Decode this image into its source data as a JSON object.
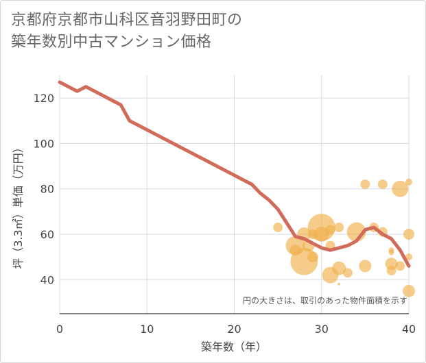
{
  "title_line1": "京都府京都市山科区音羽野田町の",
  "title_line2": "築年数別中古マンション価格",
  "colors": {
    "line": "#d16b5a",
    "bubble": "#f0b04b",
    "grid": "#d3dbe3",
    "background": "#ffffff"
  },
  "chart_data": {
    "type": "scatter",
    "xlabel": "築年数（年）",
    "ylabel": "坪（3.3㎡）単価（万円）",
    "xlim": [
      0,
      40
    ],
    "ylim": [
      25,
      130
    ],
    "xticks": [
      0,
      10,
      20,
      30,
      40
    ],
    "yticks": [
      40,
      60,
      80,
      100,
      120
    ],
    "grid": true,
    "note": "円の大きさは、取引のあった物件面積を示す",
    "line": {
      "x": [
        0,
        1,
        2,
        3,
        4,
        5,
        6,
        7,
        8,
        9,
        10,
        11,
        12,
        13,
        14,
        15,
        16,
        17,
        18,
        19,
        20,
        21,
        22,
        23,
        24,
        25,
        26,
        27,
        28,
        29,
        30,
        31,
        32,
        33,
        34,
        35,
        36,
        37,
        38,
        39,
        40
      ],
      "y": [
        127,
        125,
        123,
        125,
        123,
        121,
        119,
        117,
        110,
        108,
        106,
        104,
        102,
        100,
        98,
        96,
        94,
        92,
        90,
        88,
        86,
        84,
        82,
        78,
        75,
        71,
        65,
        59,
        58,
        56,
        54,
        53,
        54,
        55,
        57,
        62,
        63,
        60,
        58,
        53,
        46
      ]
    },
    "bubbles": [
      {
        "x": 25,
        "y": 63,
        "s": 7
      },
      {
        "x": 27,
        "y": 55,
        "s": 14
      },
      {
        "x": 27,
        "y": 53,
        "s": 8
      },
      {
        "x": 28,
        "y": 60,
        "s": 10
      },
      {
        "x": 28,
        "y": 48,
        "s": 20
      },
      {
        "x": 28.5,
        "y": 55,
        "s": 9
      },
      {
        "x": 29,
        "y": 50,
        "s": 8
      },
      {
        "x": 29,
        "y": 60,
        "s": 7
      },
      {
        "x": 30,
        "y": 63,
        "s": 20
      },
      {
        "x": 30,
        "y": 60,
        "s": 11
      },
      {
        "x": 31,
        "y": 62,
        "s": 7
      },
      {
        "x": 31,
        "y": 55,
        "s": 7
      },
      {
        "x": 31,
        "y": 42,
        "s": 12
      },
      {
        "x": 32,
        "y": 63,
        "s": 7
      },
      {
        "x": 32,
        "y": 45,
        "s": 10
      },
      {
        "x": 32,
        "y": 38,
        "s": 2
      },
      {
        "x": 33,
        "y": 43,
        "s": 7
      },
      {
        "x": 34,
        "y": 61,
        "s": 14
      },
      {
        "x": 35,
        "y": 82,
        "s": 7
      },
      {
        "x": 35,
        "y": 46,
        "s": 9
      },
      {
        "x": 36,
        "y": 63,
        "s": 7
      },
      {
        "x": 37,
        "y": 82,
        "s": 7
      },
      {
        "x": 37,
        "y": 61,
        "s": 7
      },
      {
        "x": 38,
        "y": 53,
        "s": 4
      },
      {
        "x": 38,
        "y": 52,
        "s": 4
      },
      {
        "x": 38,
        "y": 47,
        "s": 9
      },
      {
        "x": 38,
        "y": 44,
        "s": 7
      },
      {
        "x": 39,
        "y": 80,
        "s": 12
      },
      {
        "x": 39,
        "y": 46,
        "s": 7
      },
      {
        "x": 40,
        "y": 83,
        "s": 5
      },
      {
        "x": 40,
        "y": 60,
        "s": 8
      },
      {
        "x": 40,
        "y": 50,
        "s": 5
      },
      {
        "x": 40,
        "y": 35,
        "s": 9
      }
    ]
  }
}
